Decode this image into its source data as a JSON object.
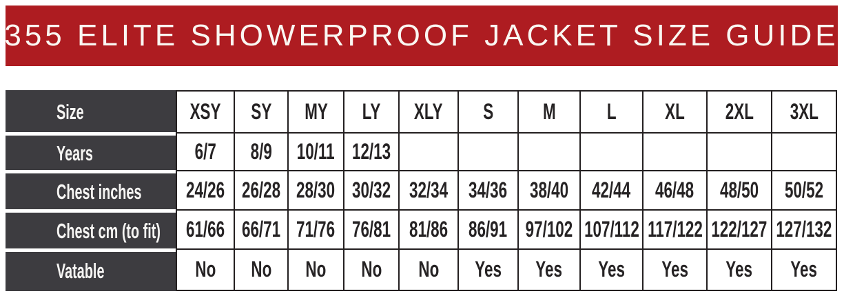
{
  "banner": {
    "title": "355 ELITE SHOWERPROOF JACKET SIZE GUIDE",
    "bg_color": "#AE1C21",
    "text_color": "#FAF7F2"
  },
  "table": {
    "colors": {
      "label_bg": "#3D3C40",
      "label_text": "#F6F5F3",
      "border": "#231F20",
      "cell_text": "#262324"
    },
    "header": {
      "label": "Size",
      "columns": [
        "XSY",
        "SY",
        "MY",
        "LY",
        "XLY",
        "S",
        "M",
        "L",
        "XL",
        "2XL",
        "3XL"
      ]
    },
    "body": [
      {
        "label": "Years",
        "values": [
          "6/7",
          "8/9",
          "10/11",
          "12/13",
          "",
          "",
          "",
          "",
          "",
          "",
          ""
        ]
      },
      {
        "label": "Chest inches",
        "values": [
          "24/26",
          "26/28",
          "28/30",
          "30/32",
          "32/34",
          "34/36",
          "38/40",
          "42/44",
          "46/48",
          "48/50",
          "50/52"
        ]
      },
      {
        "label": "Chest cm (to fit)",
        "values": [
          "61/66",
          "66/71",
          "71/76",
          "76/81",
          "81/86",
          "86/91",
          "97/102",
          "107/112",
          "117/122",
          "122/127",
          "127/132"
        ]
      },
      {
        "label": "Vatable",
        "values": [
          "No",
          "No",
          "No",
          "No",
          "No",
          "Yes",
          "Yes",
          "Yes",
          "Yes",
          "Yes",
          "Yes"
        ]
      }
    ]
  }
}
